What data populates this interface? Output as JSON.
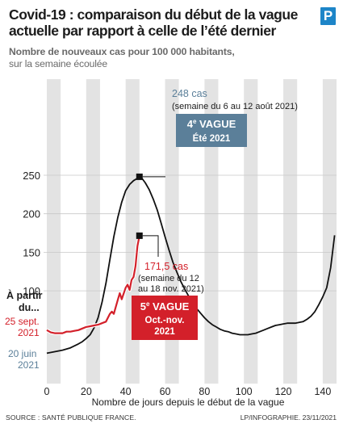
{
  "title": "Covid-19 : comparaison du début de la vague actuelle par rapport à celle de l’été dernier",
  "logo_letter": "P",
  "subtitle_bold": "Nombre de nouveaux cas pour 100 000 habitants,",
  "subtitle_rest": "sur la semaine écoulée",
  "colors": {
    "summer_line": "#111111",
    "current_line": "#d3202a",
    "summer_badge": "#5b7f99",
    "current_badge": "#d3202a",
    "band_fill": "#e3e3e3",
    "blue_label": "#5b7f99"
  },
  "annotations": {
    "peak_summer_value": "248 cas",
    "peak_summer_period": "(semaine du 6 au 12 août 2021)",
    "summer_badge_line1": "4e VAGUE",
    "summer_badge_line2": "Été 2021",
    "peak_current_value": "171,5 cas",
    "peak_current_period_1": "(semaine du 12",
    "peak_current_period_2": "au 18 nov. 2021)",
    "current_badge_line1": "5e VAGUE",
    "current_badge_line2": "Oct.-nov.",
    "current_badge_line3": "2021",
    "start_label_1": "À partir",
    "start_label_2": "du...",
    "start_current_1": "25 sept.",
    "start_current_2": "2021",
    "start_summer_1": "20 juin",
    "start_summer_2": "2021"
  },
  "chart_data": {
    "type": "line",
    "xlabel": "Nombre de jours depuis le début de la vague",
    "ylabel": "",
    "xlim": [
      0,
      147
    ],
    "ylim": [
      0,
      255
    ],
    "x_ticks": [
      0,
      20,
      40,
      60,
      80,
      100,
      120,
      140
    ],
    "y_ticks": [
      100,
      150,
      200,
      250
    ],
    "series": [
      {
        "name": "4e VAGUE Été 2021",
        "x": [
          0,
          4,
          8,
          12,
          16,
          18,
          20,
          22,
          24,
          26,
          28,
          30,
          32,
          34,
          36,
          38,
          40,
          42,
          44,
          46,
          47,
          48,
          50,
          52,
          54,
          56,
          58,
          60,
          62,
          64,
          66,
          68,
          70,
          72,
          74,
          76,
          78,
          80,
          82,
          84,
          86,
          88,
          90,
          92,
          94,
          96,
          98,
          100,
          102,
          104,
          106,
          108,
          110,
          112,
          114,
          116,
          118,
          120,
          122,
          124,
          126,
          128,
          130,
          132,
          134,
          136,
          138,
          140,
          142,
          144,
          146
        ],
        "values": [
          19,
          21,
          23,
          26,
          31,
          34,
          38,
          43,
          52,
          65,
          85,
          110,
          140,
          170,
          195,
          215,
          230,
          238,
          243,
          246,
          248,
          247,
          240,
          231,
          219,
          205,
          188,
          170,
          153,
          137,
          124,
          112,
          102,
          93,
          85,
          77,
          71,
          65,
          60,
          56,
          53,
          50,
          48,
          47,
          45,
          44,
          43,
          43,
          43,
          44,
          45,
          47,
          49,
          51,
          53,
          55,
          56,
          57,
          58,
          58,
          58,
          59,
          60,
          63,
          67,
          73,
          82,
          92,
          104,
          130,
          172
        ]
      },
      {
        "name": "5e VAGUE Oct.-nov. 2021",
        "x": [
          0,
          2,
          4,
          6,
          8,
          10,
          12,
          14,
          16,
          18,
          20,
          22,
          24,
          26,
          28,
          30,
          32,
          33,
          34,
          36,
          37,
          38,
          40,
          41,
          42,
          43,
          44,
          45,
          46,
          47
        ],
        "values": [
          49,
          46,
          45,
          45,
          45,
          47,
          47,
          48,
          49,
          51,
          53,
          54,
          55,
          56,
          58,
          60,
          70,
          73,
          70,
          88,
          97,
          89,
          104,
          108,
          101,
          114,
          118,
          132,
          158,
          171.5
        ]
      }
    ],
    "highlighted_ranges_x": [
      [
        0,
        7
      ],
      [
        20,
        27
      ],
      [
        40,
        47
      ],
      [
        60,
        67
      ],
      [
        80,
        87
      ],
      [
        100,
        107
      ],
      [
        120,
        127
      ],
      [
        140,
        147
      ]
    ]
  },
  "footer": {
    "source": "SOURCE : SANTÉ PUBLIQUE FRANCE.",
    "credit": "LP/INFOGRAPHIE.  23/11/2021"
  }
}
